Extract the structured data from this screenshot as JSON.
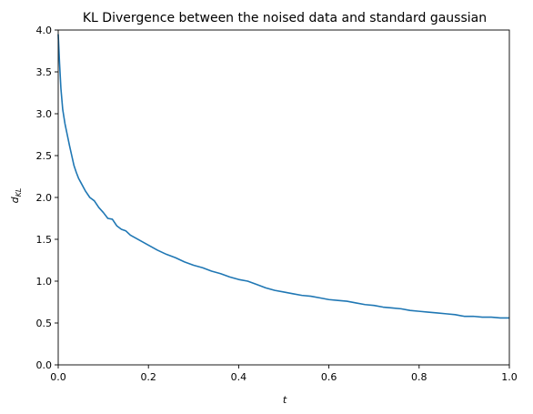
{
  "chart_data": {
    "type": "line",
    "title": "KL Divergence between the noised data and standard gaussian",
    "xlabel": "t",
    "ylabel_main": "d",
    "ylabel_sub": "KL",
    "xlim": [
      0.0,
      1.0
    ],
    "ylim": [
      0.0,
      4.0
    ],
    "x_ticks": [
      {
        "value": 0.0,
        "label": "0.0"
      },
      {
        "value": 0.2,
        "label": "0.2"
      },
      {
        "value": 0.4,
        "label": "0.4"
      },
      {
        "value": 0.6,
        "label": "0.6"
      },
      {
        "value": 0.8,
        "label": "0.8"
      },
      {
        "value": 1.0,
        "label": "1.0"
      }
    ],
    "y_ticks": [
      {
        "value": 0.0,
        "label": "0.0"
      },
      {
        "value": 0.5,
        "label": "0.5"
      },
      {
        "value": 1.0,
        "label": "1.0"
      },
      {
        "value": 1.5,
        "label": "1.5"
      },
      {
        "value": 2.0,
        "label": "2.0"
      },
      {
        "value": 2.5,
        "label": "2.5"
      },
      {
        "value": 3.0,
        "label": "3.0"
      },
      {
        "value": 3.5,
        "label": "3.5"
      },
      {
        "value": 4.0,
        "label": "4.0"
      }
    ],
    "grid": false,
    "series": [
      {
        "color": "#1f77b4",
        "x": [
          0.0,
          0.003,
          0.006,
          0.01,
          0.015,
          0.02,
          0.025,
          0.03,
          0.035,
          0.04,
          0.045,
          0.05,
          0.06,
          0.07,
          0.08,
          0.09,
          0.1,
          0.11,
          0.12,
          0.13,
          0.14,
          0.15,
          0.16,
          0.17,
          0.18,
          0.2,
          0.22,
          0.24,
          0.26,
          0.28,
          0.3,
          0.32,
          0.34,
          0.36,
          0.38,
          0.4,
          0.42,
          0.44,
          0.46,
          0.48,
          0.5,
          0.52,
          0.54,
          0.56,
          0.58,
          0.6,
          0.62,
          0.64,
          0.66,
          0.68,
          0.7,
          0.72,
          0.74,
          0.76,
          0.78,
          0.8,
          0.82,
          0.84,
          0.86,
          0.88,
          0.9,
          0.92,
          0.94,
          0.96,
          0.98,
          1.0
        ],
        "y": [
          3.95,
          3.6,
          3.3,
          3.05,
          2.88,
          2.75,
          2.62,
          2.5,
          2.38,
          2.3,
          2.23,
          2.18,
          2.08,
          2.0,
          1.96,
          1.88,
          1.82,
          1.75,
          1.74,
          1.66,
          1.62,
          1.6,
          1.55,
          1.52,
          1.49,
          1.43,
          1.37,
          1.32,
          1.28,
          1.23,
          1.19,
          1.16,
          1.12,
          1.09,
          1.05,
          1.02,
          1.0,
          0.96,
          0.92,
          0.89,
          0.87,
          0.85,
          0.83,
          0.82,
          0.8,
          0.78,
          0.77,
          0.76,
          0.74,
          0.72,
          0.71,
          0.69,
          0.68,
          0.67,
          0.65,
          0.64,
          0.63,
          0.62,
          0.61,
          0.6,
          0.58,
          0.58,
          0.57,
          0.57,
          0.56,
          0.56
        ]
      }
    ]
  }
}
